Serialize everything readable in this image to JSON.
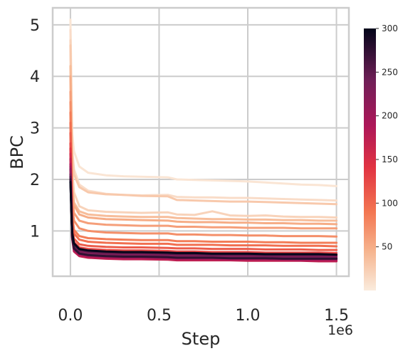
{
  "chart_data": {
    "type": "line",
    "xlabel": "Step",
    "ylabel": "BPC",
    "x_multiplier_label": "1e6",
    "xlim": [
      -0.1,
      1.57
    ],
    "ylim": [
      0.12,
      5.33
    ],
    "x_ticks": [
      0.0,
      0.5,
      1.0,
      1.5
    ],
    "x_tick_labels": [
      "0.0",
      "0.5",
      "1.0",
      "1.5"
    ],
    "y_ticks": [
      1,
      2,
      3,
      4,
      5
    ],
    "y_tick_labels": [
      "1",
      "2",
      "3",
      "4",
      "5"
    ],
    "grid": true,
    "colorbar": {
      "min": 0,
      "max": 300,
      "ticks": [
        50,
        100,
        150,
        200,
        250,
        300
      ],
      "tick_labels": [
        "50",
        "100",
        "150",
        "200",
        "250",
        "300"
      ],
      "colormap": "rocket_r"
    },
    "x_values": [
      0.0,
      0.01,
      0.02,
      0.05,
      0.1,
      0.2,
      0.3,
      0.4,
      0.55,
      0.6,
      0.7,
      0.8,
      0.9,
      1.0,
      1.1,
      1.2,
      1.3,
      1.4,
      1.5
    ],
    "series": [
      {
        "cvalue": 5,
        "values": [
          5.1,
          2.9,
          2.55,
          2.25,
          2.13,
          2.08,
          2.06,
          2.05,
          2.04,
          2.0,
          1.99,
          1.98,
          1.97,
          1.96,
          1.94,
          1.92,
          1.9,
          1.89,
          1.87
        ]
      },
      {
        "cvalue": 12,
        "values": [
          4.9,
          2.6,
          2.2,
          1.9,
          1.78,
          1.72,
          1.7,
          1.69,
          1.7,
          1.66,
          1.65,
          1.65,
          1.64,
          1.64,
          1.63,
          1.62,
          1.61,
          1.6,
          1.59
        ]
      },
      {
        "cvalue": 20,
        "values": [
          4.7,
          2.2,
          1.75,
          1.48,
          1.4,
          1.37,
          1.36,
          1.35,
          1.36,
          1.32,
          1.31,
          1.38,
          1.3,
          1.29,
          1.3,
          1.28,
          1.27,
          1.27,
          1.26
        ]
      },
      {
        "cvalue": 28,
        "values": [
          4.6,
          2.5,
          2.1,
          1.85,
          1.75,
          1.71,
          1.7,
          1.68,
          1.67,
          1.6,
          1.59,
          1.58,
          1.57,
          1.57,
          1.56,
          1.55,
          1.54,
          1.53,
          1.52
        ]
      },
      {
        "cvalue": 38,
        "values": [
          4.2,
          1.9,
          1.55,
          1.38,
          1.32,
          1.29,
          1.28,
          1.27,
          1.27,
          1.25,
          1.24,
          1.23,
          1.23,
          1.22,
          1.22,
          1.21,
          1.21,
          1.2,
          1.2
        ]
      },
      {
        "cvalue": 50,
        "values": [
          4.0,
          1.8,
          1.5,
          1.32,
          1.26,
          1.23,
          1.22,
          1.21,
          1.2,
          1.18,
          1.17,
          1.17,
          1.16,
          1.16,
          1.15,
          1.15,
          1.14,
          1.14,
          1.13
        ]
      },
      {
        "cvalue": 60,
        "values": [
          3.7,
          1.65,
          1.35,
          1.2,
          1.15,
          1.12,
          1.11,
          1.1,
          1.1,
          1.08,
          1.08,
          1.07,
          1.07,
          1.06,
          1.06,
          1.06,
          1.05,
          1.05,
          1.05
        ]
      },
      {
        "cvalue": 72,
        "values": [
          3.5,
          1.5,
          1.2,
          1.05,
          1.0,
          0.97,
          0.96,
          0.95,
          0.95,
          0.93,
          0.93,
          0.92,
          0.92,
          0.91,
          0.91,
          0.9,
          0.9,
          0.9,
          0.89
        ]
      },
      {
        "cvalue": 85,
        "values": [
          3.3,
          1.3,
          1.02,
          0.9,
          0.86,
          0.84,
          0.83,
          0.82,
          0.82,
          0.8,
          0.8,
          0.79,
          0.79,
          0.79,
          0.78,
          0.78,
          0.77,
          0.77,
          0.77
        ]
      },
      {
        "cvalue": 95,
        "values": [
          3.1,
          1.2,
          0.95,
          0.83,
          0.79,
          0.77,
          0.76,
          0.75,
          0.75,
          0.73,
          0.73,
          0.73,
          0.72,
          0.72,
          0.72,
          0.71,
          0.71,
          0.71,
          0.7
        ]
      },
      {
        "cvalue": 110,
        "values": [
          2.9,
          1.1,
          0.85,
          0.74,
          0.71,
          0.69,
          0.68,
          0.68,
          0.67,
          0.66,
          0.66,
          0.65,
          0.65,
          0.65,
          0.64,
          0.64,
          0.64,
          0.63,
          0.63
        ]
      },
      {
        "cvalue": 125,
        "values": [
          2.7,
          1.0,
          0.78,
          0.68,
          0.65,
          0.63,
          0.62,
          0.62,
          0.61,
          0.6,
          0.6,
          0.59,
          0.59,
          0.59,
          0.58,
          0.58,
          0.58,
          0.58,
          0.57
        ]
      },
      {
        "cvalue": 140,
        "values": [
          2.6,
          0.95,
          0.72,
          0.62,
          0.59,
          0.57,
          0.56,
          0.56,
          0.55,
          0.54,
          0.54,
          0.54,
          0.53,
          0.53,
          0.53,
          0.52,
          0.52,
          0.52,
          0.52
        ]
      },
      {
        "cvalue": 155,
        "values": [
          2.5,
          0.9,
          0.66,
          0.56,
          0.53,
          0.51,
          0.5,
          0.5,
          0.49,
          0.48,
          0.48,
          0.48,
          0.47,
          0.47,
          0.47,
          0.46,
          0.46,
          0.46,
          0.46
        ]
      },
      {
        "cvalue": 170,
        "values": [
          2.4,
          0.85,
          0.6,
          0.51,
          0.48,
          0.46,
          0.45,
          0.45,
          0.44,
          0.43,
          0.43,
          0.43,
          0.43,
          0.42,
          0.42,
          0.42,
          0.42,
          0.41,
          0.41
        ]
      },
      {
        "cvalue": 185,
        "values": [
          2.3,
          0.88,
          0.62,
          0.53,
          0.5,
          0.48,
          0.47,
          0.47,
          0.46,
          0.45,
          0.45,
          0.45,
          0.44,
          0.44,
          0.44,
          0.44,
          0.43,
          0.43,
          0.43
        ]
      },
      {
        "cvalue": 200,
        "values": [
          2.25,
          0.86,
          0.64,
          0.55,
          0.52,
          0.5,
          0.49,
          0.49,
          0.48,
          0.47,
          0.47,
          0.47,
          0.46,
          0.46,
          0.46,
          0.45,
          0.45,
          0.45,
          0.45
        ]
      },
      {
        "cvalue": 215,
        "values": [
          2.2,
          0.92,
          0.7,
          0.6,
          0.57,
          0.55,
          0.54,
          0.54,
          0.53,
          0.52,
          0.52,
          0.52,
          0.51,
          0.51,
          0.51,
          0.5,
          0.5,
          0.5,
          0.5
        ]
      },
      {
        "cvalue": 235,
        "values": [
          2.1,
          0.9,
          0.68,
          0.58,
          0.55,
          0.53,
          0.52,
          0.52,
          0.51,
          0.5,
          0.5,
          0.5,
          0.49,
          0.49,
          0.49,
          0.48,
          0.48,
          0.48,
          0.48
        ]
      },
      {
        "cvalue": 255,
        "values": [
          2.05,
          0.95,
          0.73,
          0.63,
          0.6,
          0.58,
          0.57,
          0.57,
          0.56,
          0.55,
          0.55,
          0.54,
          0.54,
          0.54,
          0.53,
          0.53,
          0.53,
          0.53,
          0.53
        ]
      },
      {
        "cvalue": 275,
        "values": [
          2.0,
          0.88,
          0.66,
          0.56,
          0.53,
          0.51,
          0.5,
          0.5,
          0.49,
          0.48,
          0.48,
          0.48,
          0.47,
          0.47,
          0.47,
          0.46,
          0.46,
          0.46,
          0.46
        ]
      },
      {
        "cvalue": 300,
        "values": [
          1.95,
          0.97,
          0.76,
          0.65,
          0.62,
          0.6,
          0.59,
          0.59,
          0.58,
          0.57,
          0.57,
          0.56,
          0.56,
          0.56,
          0.55,
          0.55,
          0.55,
          0.55,
          0.54
        ]
      }
    ]
  }
}
